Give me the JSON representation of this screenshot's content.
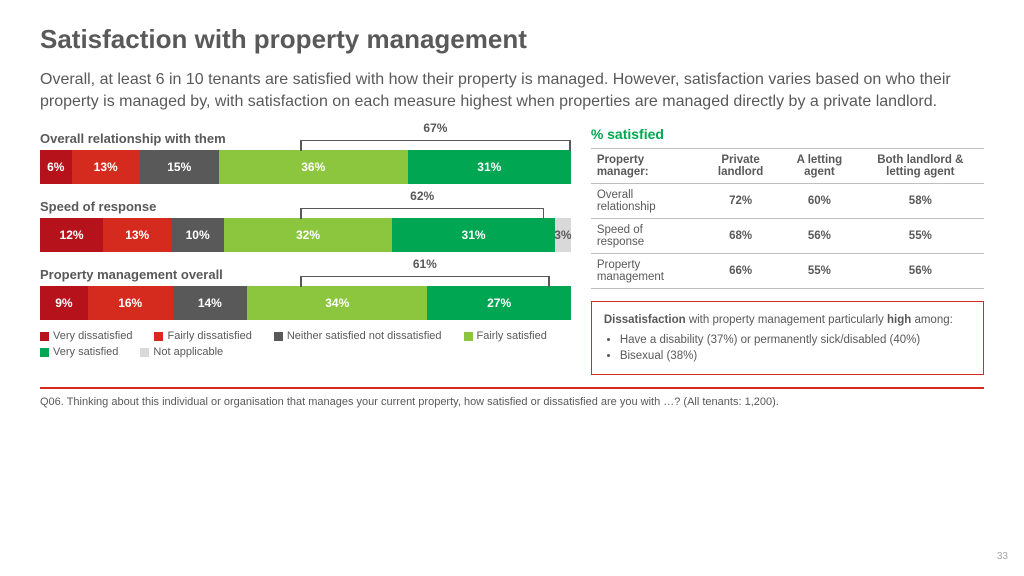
{
  "title": "Satisfaction with property management",
  "summary": "Overall, at least 6 in 10 tenants are satisfied with how their property is managed. However, satisfaction varies based on who their property is managed by, with satisfaction on each measure highest when properties are managed directly by a private landlord.",
  "colors": {
    "very_dissatisfied": "#b5121b",
    "fairly_dissatisfied": "#d52b1e",
    "neither": "#595959",
    "fairly_satisfied": "#8cc63f",
    "very_satisfied": "#00a651",
    "na": "#d9d9d9",
    "bracket": "#595959",
    "text": "#595959",
    "rule": "#d52b1e",
    "sat_header": "#00a651"
  },
  "legend": [
    {
      "label": "Very dissatisfied",
      "color": "#b5121b"
    },
    {
      "label": "Fairly dissatisfied",
      "color": "#d52b1e"
    },
    {
      "label": "Neither satisfied not dissatisfied",
      "color": "#595959"
    },
    {
      "label": "Fairly satisfied",
      "color": "#8cc63f"
    },
    {
      "label": "Very satisfied",
      "color": "#00a651"
    },
    {
      "label": "Not applicable",
      "color": "#d9d9d9"
    }
  ],
  "charts": [
    {
      "title": "Overall relationship with them",
      "bracket_label": "67%",
      "bracket_left_pct": 49,
      "bracket_width_pct": 51,
      "segments": [
        {
          "value": 6,
          "label": "6%",
          "color": "#b5121b"
        },
        {
          "value": 13,
          "label": "13%",
          "color": "#d52b1e"
        },
        {
          "value": 15,
          "label": "15%",
          "color": "#595959"
        },
        {
          "value": 36,
          "label": "36%",
          "color": "#8cc63f"
        },
        {
          "value": 31,
          "label": "31%",
          "color": "#00a651"
        }
      ]
    },
    {
      "title": "Speed of response",
      "bracket_label": "62%",
      "bracket_left_pct": 49,
      "bracket_width_pct": 46,
      "segments": [
        {
          "value": 12,
          "label": "12%",
          "color": "#b5121b"
        },
        {
          "value": 13,
          "label": "13%",
          "color": "#d52b1e"
        },
        {
          "value": 10,
          "label": "10%",
          "color": "#595959"
        },
        {
          "value": 32,
          "label": "32%",
          "color": "#8cc63f"
        },
        {
          "value": 31,
          "label": "31%",
          "color": "#00a651"
        },
        {
          "value": 3,
          "label": "3%",
          "color": "#d9d9d9",
          "textcolor": "#595959"
        }
      ]
    },
    {
      "title": "Property management overall",
      "bracket_label": "61%",
      "bracket_left_pct": 49,
      "bracket_width_pct": 47,
      "segments": [
        {
          "value": 9,
          "label": "9%",
          "color": "#b5121b"
        },
        {
          "value": 16,
          "label": "16%",
          "color": "#d52b1e"
        },
        {
          "value": 14,
          "label": "14%",
          "color": "#595959"
        },
        {
          "value": 34,
          "label": "34%",
          "color": "#8cc63f"
        },
        {
          "value": 27,
          "label": "27%",
          "color": "#00a651"
        }
      ]
    }
  ],
  "sat_heading": "% satisfied",
  "sat_table": {
    "head": [
      "Property manager:",
      "Private landlord",
      "A letting agent",
      "Both landlord & letting agent"
    ],
    "rows": [
      [
        "Overall relationship",
        "72%",
        "60%",
        "58%"
      ],
      [
        "Speed of response",
        "68%",
        "56%",
        "55%"
      ],
      [
        "Property management",
        "66%",
        "55%",
        "56%"
      ]
    ]
  },
  "callout": {
    "lead_strong1": "Dissatisfaction",
    "lead_mid": " with property management particularly ",
    "lead_strong2": "high",
    "lead_tail": " among:",
    "bullets": [
      "Have a disability (37%) or permanently sick/disabled (40%)",
      "Bisexual (38%)"
    ]
  },
  "footer": "Q06. Thinking about this individual or organisation that manages your current property, how satisfied or dissatisfied are you with …? (All tenants: 1,200).",
  "page_number": "33"
}
